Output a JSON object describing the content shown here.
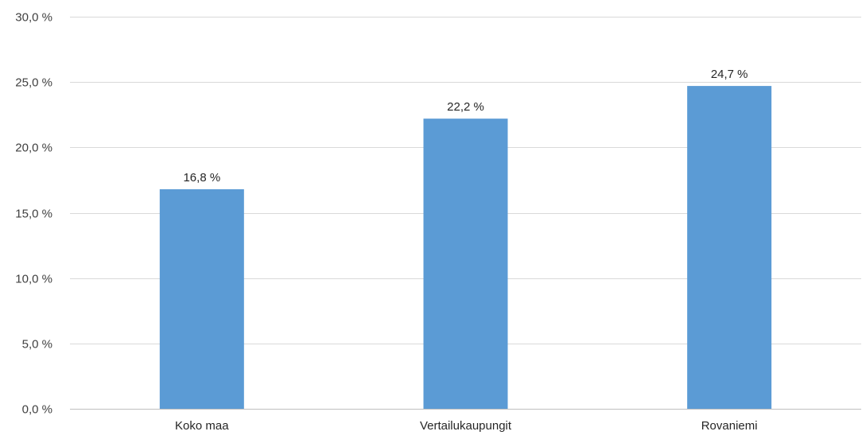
{
  "chart_data": {
    "type": "bar",
    "categories": [
      "Koko maa",
      "Vertailukaupungit",
      "Rovaniemi"
    ],
    "values": [
      16.8,
      22.2,
      24.7
    ],
    "value_labels": [
      "16,8 %",
      "22,2 %",
      "24,7 %"
    ],
    "title": "",
    "xlabel": "",
    "ylabel": "",
    "ylim": [
      0,
      30
    ],
    "yticks": [
      0,
      5,
      10,
      15,
      20,
      25,
      30
    ],
    "ytick_labels": [
      "0,0 %",
      "5,0 %",
      "10,0 %",
      "15,0 %",
      "20,0 %",
      "25,0 %",
      "30,0 %"
    ],
    "grid": true,
    "legend": "none",
    "colors": {
      "bar": "#5B9BD5",
      "grid": "#D9D9D9",
      "axis": "#BFBFBF"
    }
  }
}
